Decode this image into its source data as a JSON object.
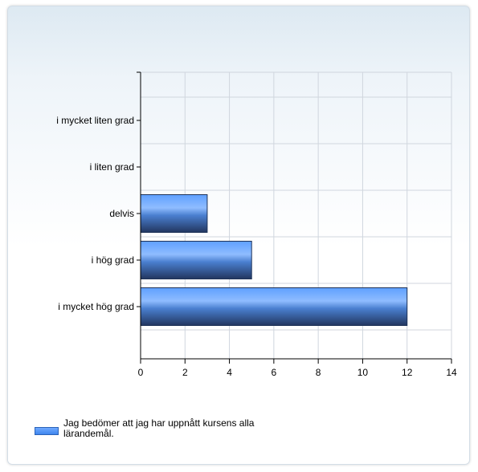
{
  "chart_data": {
    "type": "bar",
    "orientation": "horizontal",
    "categories": [
      "i mycket liten grad",
      "i liten grad",
      "delvis",
      "i hög grad",
      "i mycket hög grad"
    ],
    "series": [
      {
        "name": "Jag bedömer att jag har uppnått kursens alla lärandemål.",
        "values": [
          0,
          0,
          3,
          5,
          12
        ]
      }
    ],
    "xlim": [
      0,
      14
    ],
    "xticks": [
      0,
      2,
      4,
      6,
      8,
      10,
      12,
      14
    ],
    "grid": true,
    "legend_position": "bottom-left",
    "bar_color": "#4a8ff0"
  },
  "legend": {
    "label": "Jag bedömer att jag har uppnått kursens alla lärandemål."
  }
}
